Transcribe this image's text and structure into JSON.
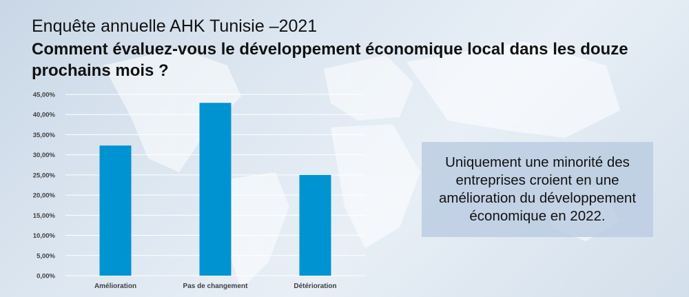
{
  "header": {
    "subtitle": "Enquête annuelle AHK Tunisie –2021",
    "title": "Comment évaluez-vous le développement économique local dans les douze prochains mois ?"
  },
  "callout": {
    "text": "Uniquement une minorité des entreprises croient en une amélioration du développement économique en 2022."
  },
  "colors": {
    "bar": "#0093d1",
    "gridline": "#ffffff",
    "callout_bg": "#bccde2"
  },
  "chart_data": {
    "type": "bar",
    "categories": [
      "Amélioration",
      "Pas de changement",
      "Détérioration"
    ],
    "values": [
      32.3,
      42.9,
      25.0
    ],
    "ylim": [
      0,
      45
    ],
    "yticks": [
      "0,00%",
      "5,00%",
      "10,00%",
      "15,00%",
      "20,00%",
      "25,00%",
      "30,00%",
      "35,00%",
      "40,00%",
      "45,00%"
    ],
    "grid": true,
    "legend": "none"
  }
}
